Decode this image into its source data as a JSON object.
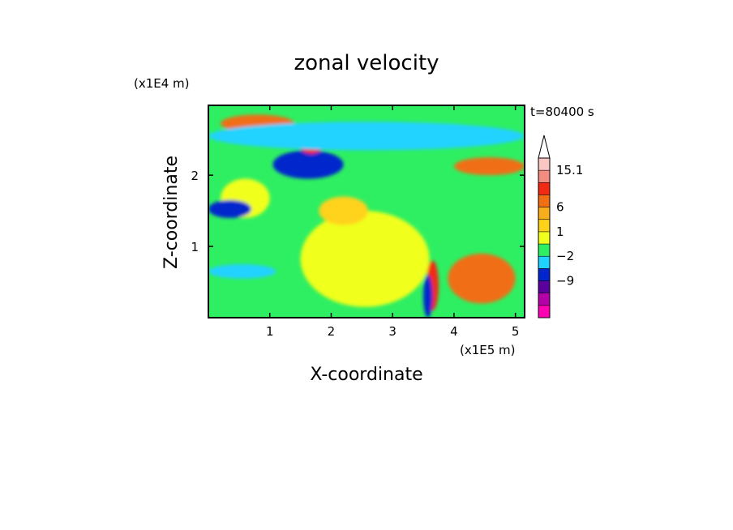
{
  "chart_data": {
    "type": "heatmap",
    "title": "zonal velocity",
    "xlabel": "X-coordinate",
    "ylabel": "Z-coordinate",
    "x_unit": "(x1E5 m)",
    "y_unit": "(x1E4 m)",
    "time_label": "t=80400 s",
    "xlim": [
      0,
      5.15
    ],
    "ylim": [
      0,
      2.98
    ],
    "x_ticks": [
      1,
      2,
      3,
      4,
      5
    ],
    "y_ticks": [
      1,
      2
    ],
    "grid": false,
    "legend": "right (colorbar)",
    "colorbar": {
      "labels": [
        {
          "text": "15.1",
          "band": 1
        },
        {
          "text": "6",
          "band": 4
        },
        {
          "text": "1",
          "band": 6
        },
        {
          "text": "−2",
          "band": 8
        },
        {
          "text": "−9",
          "band": 10
        }
      ],
      "colors": [
        "#f9c6c2",
        "#f28c80",
        "#f22a14",
        "#f06e14",
        "#f8ad1c",
        "#ffd21a",
        "#f0ff1c",
        "#2eef62",
        "#20d2ff",
        "#0025cc",
        "#5a009e",
        "#b400a8",
        "#ff00b4"
      ]
    },
    "field_colors": {
      "pink": "#f9c6c2",
      "salmon": "#f28c80",
      "red": "#f22a14",
      "orange": "#f06e14",
      "lightorange": "#f8ad1c",
      "yellow": "#ffd21a",
      "lemon": "#f0ff1c",
      "green": "#2eef62",
      "cyan": "#20d2ff",
      "blue": "#0025cc",
      "purple": "#5a009e",
      "magenta": "#b400a8"
    },
    "regions": [
      {
        "color": "lemon",
        "x": [
          1.5,
          3.6
        ],
        "z": [
          0.15,
          1.5
        ]
      },
      {
        "color": "lemon",
        "x": [
          0.2,
          1.0
        ],
        "z": [
          1.4,
          1.95
        ]
      },
      {
        "color": "yellow",
        "x": [
          1.8,
          2.6
        ],
        "z": [
          1.3,
          1.7
        ]
      },
      {
        "color": "blue",
        "x": [
          1.05,
          2.2
        ],
        "z": [
          1.95,
          2.35
        ]
      },
      {
        "color": "blue",
        "x": [
          0.0,
          0.7
        ],
        "z": [
          1.4,
          1.65
        ]
      },
      {
        "color": "red",
        "x": [
          1.45,
          1.9
        ],
        "z": [
          2.3,
          2.65
        ]
      },
      {
        "color": "orange",
        "x": [
          0.2,
          1.4
        ],
        "z": [
          2.6,
          2.85
        ]
      },
      {
        "color": "cyan",
        "x": [
          0.0,
          1.1
        ],
        "z": [
          0.55,
          0.75
        ]
      },
      {
        "color": "cyan",
        "x": [
          0.0,
          5.15
        ],
        "z": [
          2.35,
          2.75
        ]
      },
      {
        "color": "orange",
        "x": [
          4.0,
          5.15
        ],
        "z": [
          2.0,
          2.25
        ]
      },
      {
        "color": "red",
        "x": [
          3.55,
          3.75
        ],
        "z": [
          0.1,
          0.8
        ]
      },
      {
        "color": "blue",
        "x": [
          3.5,
          3.65
        ],
        "z": [
          0.0,
          0.6
        ]
      },
      {
        "color": "orange",
        "x": [
          3.9,
          5.0
        ],
        "z": [
          0.2,
          0.9
        ]
      }
    ]
  }
}
